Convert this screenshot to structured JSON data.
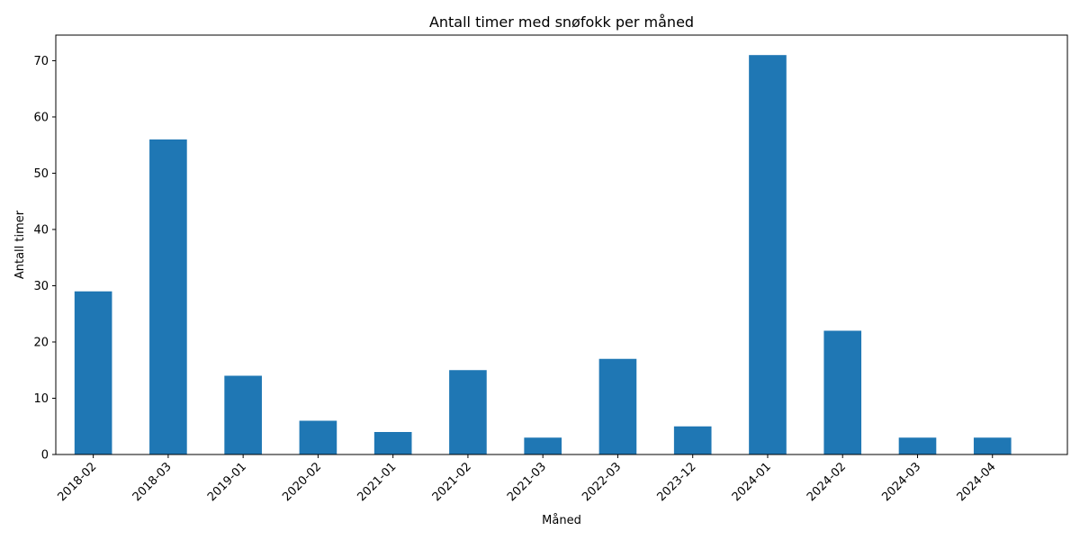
{
  "chart_data": {
    "type": "bar",
    "title": "Antall timer med snøfokk per måned",
    "xlabel": "Måned",
    "ylabel": "Antall timer",
    "categories": [
      "2018-02",
      "2018-03",
      "2019-01",
      "2020-02",
      "2021-01",
      "2021-02",
      "2021-03",
      "2022-03",
      "2023-12",
      "2024-01",
      "2024-02",
      "2024-03",
      "2024-04"
    ],
    "values": [
      29,
      56,
      14,
      6,
      4,
      15,
      3,
      17,
      5,
      71,
      22,
      3,
      3
    ],
    "ylim": [
      0,
      74.55
    ],
    "yticks": [
      0,
      10,
      20,
      30,
      40,
      50,
      60,
      70
    ],
    "bar_color": "#1f77b4",
    "grid": false,
    "legend": false
  }
}
